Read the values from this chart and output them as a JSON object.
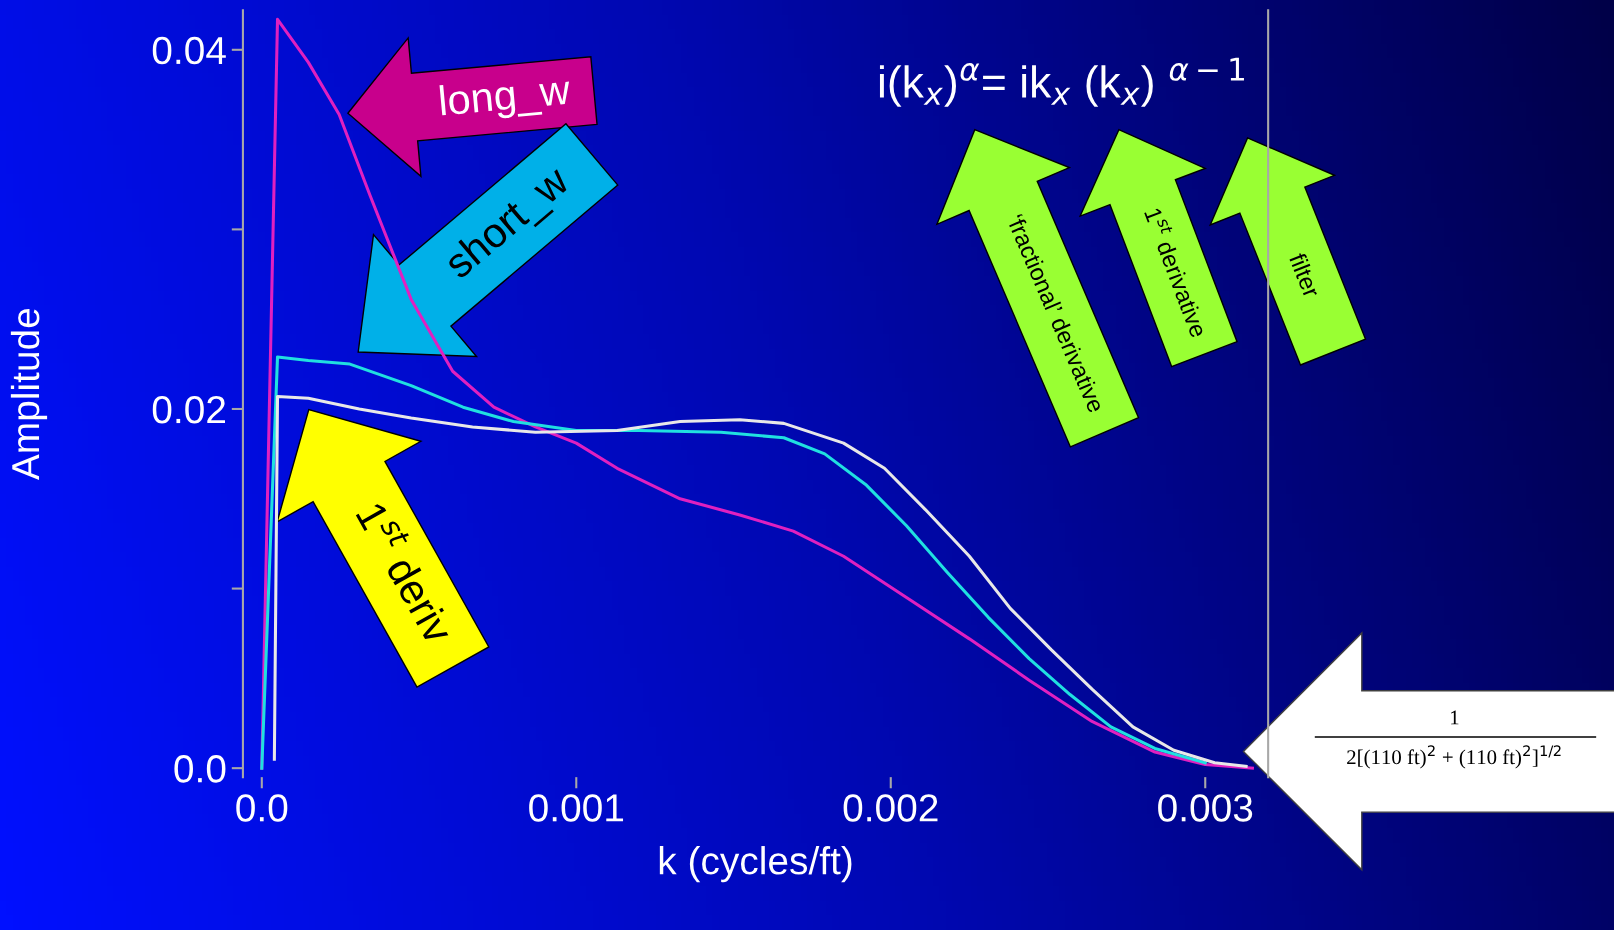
{
  "chart_data": {
    "type": "line",
    "xlabel": "k (cycles/ft)",
    "ylabel": "Amplitude",
    "xlim": [
      -6e-05,
      0.0032
    ],
    "ylim": [
      -0.0005,
      0.0422
    ],
    "xticks": [
      {
        "value": 0,
        "label": "0.0"
      },
      0.001,
      0.002,
      0.003
    ],
    "yticks": [
      {
        "value": 0,
        "label": "0.0"
      },
      {
        "value": 0.01,
        "label": null
      },
      0.02,
      {
        "value": 0.03,
        "label": null
      },
      0.04
    ],
    "grid": false,
    "legend": false,
    "marker": "none",
    "line_style": "solid",
    "series": [
      {
        "color": "#e020c0",
        "x": [
          0,
          5e-05,
          0.000148,
          0.000246,
          0.000344,
          0.000475,
          0.000607,
          0.000738,
          0.00087,
          0.001,
          0.00113,
          0.00133,
          0.00152,
          0.00169,
          0.00185,
          0.00205,
          0.00225,
          0.00244,
          0.00264,
          0.00284,
          0.003,
          0.00315
        ],
        "values": [
          0,
          0.0417,
          0.0393,
          0.0364,
          0.0319,
          0.0261,
          0.0221,
          0.0201,
          0.019,
          0.0181,
          0.0167,
          0.015,
          0.0141,
          0.0132,
          0.0118,
          0.0095,
          0.0072,
          0.0049,
          0.0026,
          0.0009,
          0.0002,
          0
        ]
      },
      {
        "color": "#20e0e0",
        "x": [
          0,
          5e-05,
          0.000148,
          0.00028,
          0.000475,
          0.00064,
          0.0008,
          0.001,
          0.0012,
          0.00146,
          0.00166,
          0.00179,
          0.00192,
          0.00205,
          0.00218,
          0.00231,
          0.00244,
          0.00257,
          0.0027,
          0.00284,
          0.003
        ],
        "values": [
          0,
          0.0229,
          0.0227,
          0.0225,
          0.0213,
          0.0201,
          0.0193,
          0.0188,
          0.0188,
          0.0187,
          0.0184,
          0.0175,
          0.0158,
          0.0135,
          0.0109,
          0.0084,
          0.0061,
          0.0041,
          0.0023,
          0.0011,
          0.0003
        ]
      },
      {
        "color": "#e8e8e8",
        "x": [
          4e-05,
          5e-05,
          0.000148,
          0.00031,
          0.000475,
          0.00067,
          0.00087,
          0.00113,
          0.00133,
          0.00152,
          0.00166,
          0.00185,
          0.00198,
          0.00211,
          0.00225,
          0.00238,
          0.00251,
          0.00264,
          0.00277,
          0.0029,
          0.00303,
          0.00313
        ],
        "values": [
          0.0005,
          0.0207,
          0.0206,
          0.02,
          0.0195,
          0.019,
          0.0187,
          0.0188,
          0.0193,
          0.0194,
          0.0192,
          0.0181,
          0.0167,
          0.0144,
          0.0118,
          0.0089,
          0.0066,
          0.0044,
          0.0023,
          0.001,
          0.0003,
          0.0001
        ]
      }
    ],
    "annotations": [
      "long_w",
      "short_w",
      "1$^{st}$ deriv",
      "i(k$_{x}$)$^{α}$= ik$_{x}$ (k$_{x}$) $^{α−1}$",
      "‘fractional’ derivative",
      "1$^{st}$ derivative",
      "filter",
      "1",
      "2[(110 ft)$^{2}$ + (110 ft)$^{2}$]$^{1/2}$"
    ]
  }
}
